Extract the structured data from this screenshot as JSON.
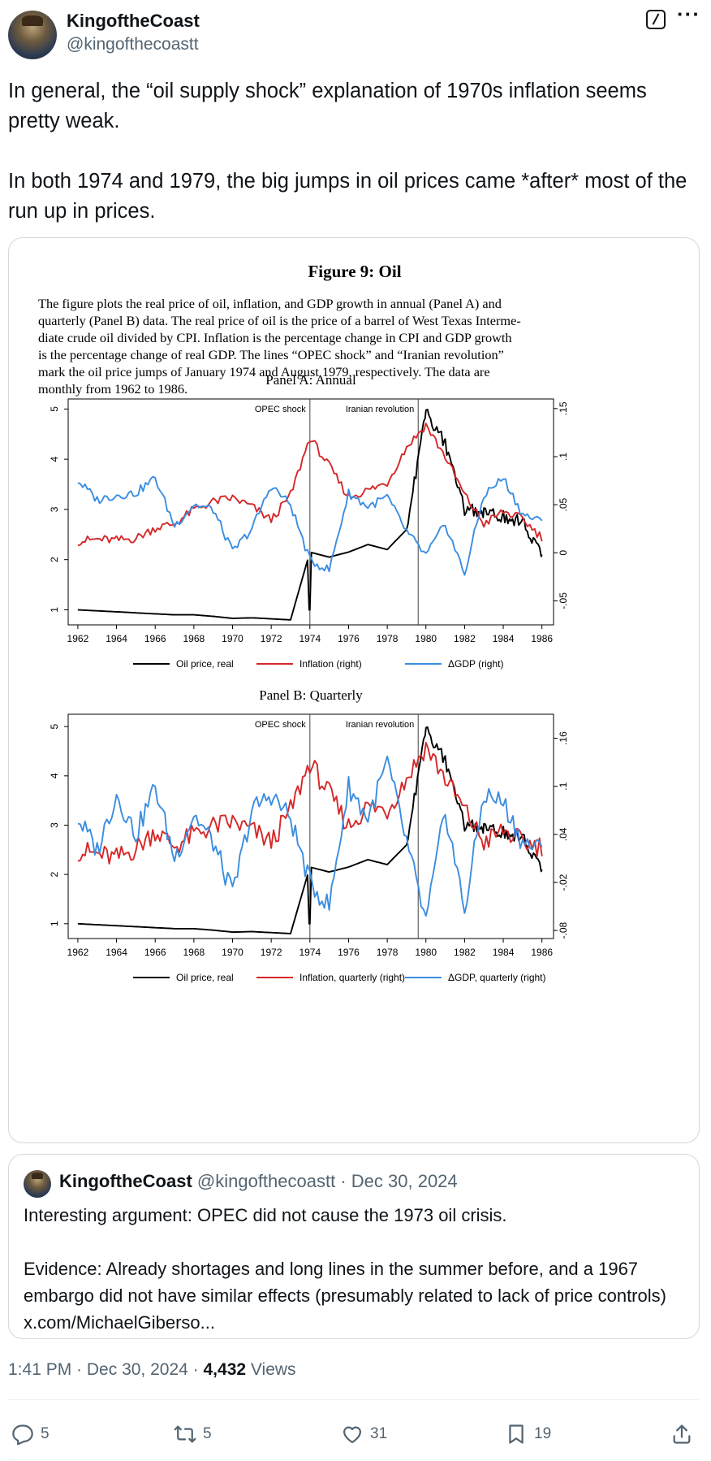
{
  "tweet": {
    "author_name": "KingoftheCoast",
    "author_handle": "@kingofthecoastt",
    "text": "In general, the “oil supply shock” explanation of 1970s inflation seems pretty weak.\n\nIn both 1974 and 1979, the big jumps in oil prices came *after* most of the run up in prices.",
    "time": "1:41 PM",
    "date": "Dec 30, 2024",
    "views_count": "4,432",
    "views_label": "Views",
    "icons": [
      "grok-icon",
      "more-icon",
      "reply-icon",
      "retweet-icon",
      "like-icon",
      "bookmark-icon",
      "share-icon"
    ]
  },
  "figure": {
    "title": "Figure 9: Oil",
    "caption_lines": [
      "The figure plots the real price of oil, inflation, and GDP growth in annual (Panel A) and",
      "quarterly (Panel B) data.  The real price of oil is the price of a barrel of West Texas Interme-",
      "diate crude oil divided by CPI. Inflation is the percentage change in CPI and GDP growth",
      "is the percentage change of real GDP. The lines “OPEC shock” and “Iranian revolution”",
      "mark the oil price jumps of January 1974 and August 1979, respectively.  The data are",
      "monthly from 1962 to 1986."
    ]
  },
  "chart_data": [
    {
      "type": "line",
      "title": "Panel A: Annual",
      "x": [
        1962,
        1963,
        1964,
        1965,
        1966,
        1967,
        1968,
        1969,
        1970,
        1971,
        1972,
        1973,
        1974,
        1975,
        1976,
        1977,
        1978,
        1979,
        1980,
        1981,
        1982,
        1983,
        1984,
        1985,
        1986
      ],
      "xticks": [
        1962,
        1964,
        1966,
        1968,
        1970,
        1972,
        1974,
        1976,
        1978,
        1980,
        1982,
        1984,
        1986
      ],
      "ylim_left": [
        0.7,
        5.2
      ],
      "yticks_left": [
        1,
        2,
        3,
        4,
        5
      ],
      "ylim_right": [
        -0.075,
        0.16
      ],
      "yticks_right": [
        "-.05",
        "0",
        ".05",
        ".1",
        ".15"
      ],
      "grid": false,
      "legend_position": "bottom",
      "annotations": [
        {
          "x": 1974.0,
          "label": "OPEC shock"
        },
        {
          "x": 1979.6,
          "label": "Iranian revolution"
        }
      ],
      "series": [
        {
          "name": "Oil price, real",
          "axis": "left",
          "color": "#000000",
          "values": [
            1.0,
            0.98,
            0.96,
            0.94,
            0.92,
            0.9,
            0.9,
            0.87,
            0.83,
            0.84,
            0.82,
            0.8,
            2.15,
            2.05,
            2.15,
            2.3,
            2.2,
            2.6,
            4.95,
            4.3,
            3.0,
            2.95,
            2.85,
            2.75,
            2.1
          ]
        },
        {
          "name": "Inflation (right)",
          "axis": "right",
          "color": "#d62728",
          "values": [
            0.012,
            0.014,
            0.013,
            0.015,
            0.026,
            0.03,
            0.045,
            0.053,
            0.057,
            0.048,
            0.034,
            0.06,
            0.12,
            0.09,
            0.058,
            0.065,
            0.073,
            0.11,
            0.133,
            0.1,
            0.06,
            0.03,
            0.043,
            0.035,
            0.016
          ]
        },
        {
          "name": "ΔGDP (right)",
          "axis": "right",
          "color": "#3b8de0",
          "values": [
            0.075,
            0.055,
            0.06,
            0.062,
            0.078,
            0.028,
            0.05,
            0.045,
            0.001,
            0.025,
            0.07,
            0.05,
            -0.008,
            -0.018,
            0.062,
            0.048,
            0.058,
            0.022,
            -0.003,
            0.03,
            -0.022,
            0.06,
            0.078,
            0.04,
            0.032
          ]
        }
      ]
    },
    {
      "type": "line",
      "title": "Panel B: Quarterly",
      "x": [
        1962,
        1963,
        1964,
        1965,
        1966,
        1967,
        1968,
        1969,
        1970,
        1971,
        1972,
        1973,
        1974,
        1975,
        1976,
        1977,
        1978,
        1979,
        1980,
        1981,
        1982,
        1983,
        1984,
        1985,
        1986
      ],
      "xticks": [
        1962,
        1964,
        1966,
        1968,
        1970,
        1972,
        1974,
        1976,
        1978,
        1980,
        1982,
        1984,
        1986
      ],
      "ylim_left": [
        0.7,
        5.25
      ],
      "yticks_left": [
        1,
        2,
        3,
        4,
        5
      ],
      "ylim_right": [
        -0.09,
        0.19
      ],
      "yticks_right": [
        "-.08",
        "-.02",
        ".04",
        ".1",
        ".16"
      ],
      "grid": false,
      "legend_position": "bottom",
      "annotations": [
        {
          "x": 1974.0,
          "label": "OPEC shock"
        },
        {
          "x": 1979.6,
          "label": "Iranian revolution"
        }
      ],
      "series": [
        {
          "name": "Oil price, real",
          "axis": "left",
          "color": "#000000",
          "values": [
            1.0,
            0.98,
            0.96,
            0.94,
            0.92,
            0.9,
            0.9,
            0.87,
            0.83,
            0.84,
            0.82,
            0.8,
            2.15,
            2.05,
            2.15,
            2.3,
            2.2,
            2.6,
            4.95,
            4.3,
            3.0,
            2.95,
            2.85,
            2.75,
            2.1
          ]
        },
        {
          "name": "Inflation, quarterly (right)",
          "axis": "right",
          "color": "#d62728",
          "values": [
            0.02,
            0.015,
            0.01,
            0.022,
            0.045,
            0.025,
            0.04,
            0.05,
            0.055,
            0.045,
            0.03,
            0.07,
            0.13,
            0.09,
            0.05,
            0.075,
            0.07,
            0.11,
            0.15,
            0.11,
            0.07,
            0.03,
            0.045,
            0.03,
            0.025
          ]
        },
        {
          "name": "ΔGDP, quarterly (right)",
          "axis": "right",
          "color": "#3b8de0",
          "values": [
            0.06,
            0.02,
            0.09,
            0.04,
            0.1,
            0.01,
            0.065,
            0.03,
            -0.035,
            0.07,
            0.09,
            0.06,
            -0.02,
            -0.05,
            0.1,
            0.06,
            0.13,
            0.03,
            -0.07,
            0.07,
            -0.055,
            0.09,
            0.08,
            0.03,
            0.02
          ]
        }
      ]
    }
  ],
  "quoted_tweet": {
    "author_name": "KingoftheCoast",
    "author_handle": "@kingofthecoastt",
    "date": "Dec 30, 2024",
    "text": "Interesting argument: OPEC did not cause the 1973 oil crisis.\n\nEvidence: Already shortages and long lines in the summer before, and a 1967 embargo did not have similar effects (presumably related to lack of price controls) x.com/MichaelGiberso..."
  },
  "actions": {
    "replies": "5",
    "retweets": "5",
    "likes": "31",
    "bookmarks": "19"
  }
}
